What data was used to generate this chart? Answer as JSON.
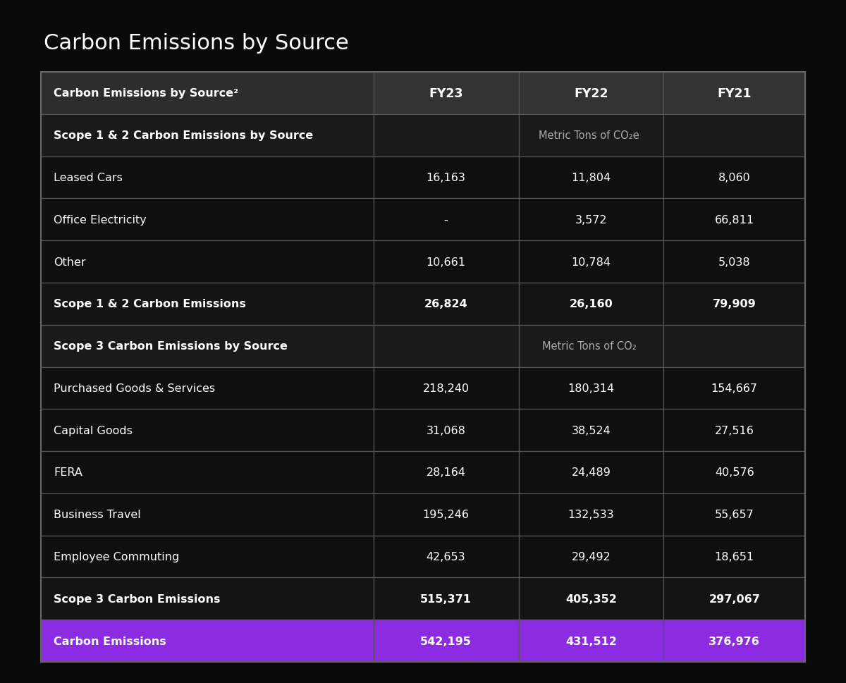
{
  "title": "Carbon Emissions by Source",
  "background_color": "#0a0a0a",
  "table_border_color": "#666666",
  "header_bg": "#2d2d2d",
  "subheader_bg": "#1a1a1a",
  "data_bg": "#0f0f0f",
  "bold_bg": "#111111",
  "purple_bg": "#8B2BE2",
  "text_white": "#ffffff",
  "text_gray": "#aaaaaa",
  "border_color": "#555555",
  "columns": [
    "Carbon Emissions by Source²",
    "FY23",
    "FY22",
    "FY21"
  ],
  "rows": [
    {
      "label": "Scope 1 & 2 Carbon Emissions by Source",
      "values": [
        "",
        "Metric Tons of CO₂e",
        ""
      ],
      "type": "subheader"
    },
    {
      "label": "Leased Cars",
      "values": [
        "16,163",
        "11,804",
        "8,060"
      ],
      "type": "data"
    },
    {
      "label": "Office Electricity",
      "values": [
        "-",
        "3,572",
        "66,811"
      ],
      "type": "data"
    },
    {
      "label": "Other",
      "values": [
        "10,661",
        "10,784",
        "5,038"
      ],
      "type": "data"
    },
    {
      "label": "Scope 1 & 2 Carbon Emissions",
      "values": [
        "26,824",
        "26,160",
        "79,909"
      ],
      "type": "bold"
    },
    {
      "label": "Scope 3 Carbon Emissions by Source",
      "values": [
        "",
        "Metric Tons of CO₂",
        ""
      ],
      "type": "subheader"
    },
    {
      "label": "Purchased Goods & Services",
      "values": [
        "218,240",
        "180,314",
        "154,667"
      ],
      "type": "data"
    },
    {
      "label": "Capital Goods",
      "values": [
        "31,068",
        "38,524",
        "27,516"
      ],
      "type": "data"
    },
    {
      "label": "FERA",
      "values": [
        "28,164",
        "24,489",
        "40,576"
      ],
      "type": "data"
    },
    {
      "label": "Business Travel",
      "values": [
        "195,246",
        "132,533",
        "55,657"
      ],
      "type": "data"
    },
    {
      "label": "Employee Commuting",
      "values": [
        "42,653",
        "29,492",
        "18,651"
      ],
      "type": "data"
    },
    {
      "label": "Scope 3 Carbon Emissions",
      "values": [
        "515,371",
        "405,352",
        "297,067"
      ],
      "type": "bold"
    },
    {
      "label": "Carbon Emissions",
      "values": [
        "542,195",
        "431,512",
        "376,976"
      ],
      "type": "total_purple"
    }
  ]
}
